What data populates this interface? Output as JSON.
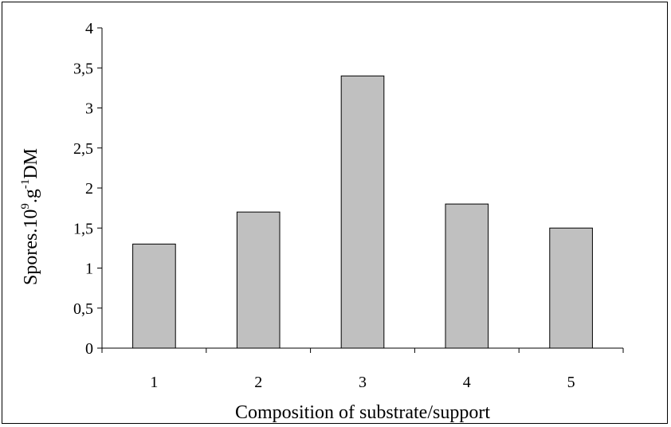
{
  "chart_data": {
    "type": "bar",
    "title": "",
    "categories": [
      "1",
      "2",
      "3",
      "4",
      "5"
    ],
    "values": [
      1.3,
      1.7,
      3.4,
      1.8,
      1.5
    ],
    "xlabel": "Composition of substrate/support",
    "ylabel": {
      "base": "Spores.10",
      "exp1": "9",
      "mid": ".g",
      "exp2": "-1",
      "end": "DM"
    },
    "ylim": [
      0,
      4
    ],
    "yticks": [
      "0",
      "0,5",
      "1",
      "1,5",
      "2",
      "2,5",
      "3",
      "3,5",
      "4"
    ],
    "grid": false,
    "legend": "none",
    "bar_color": "#c0c0c0",
    "edge_color": "#000000"
  }
}
